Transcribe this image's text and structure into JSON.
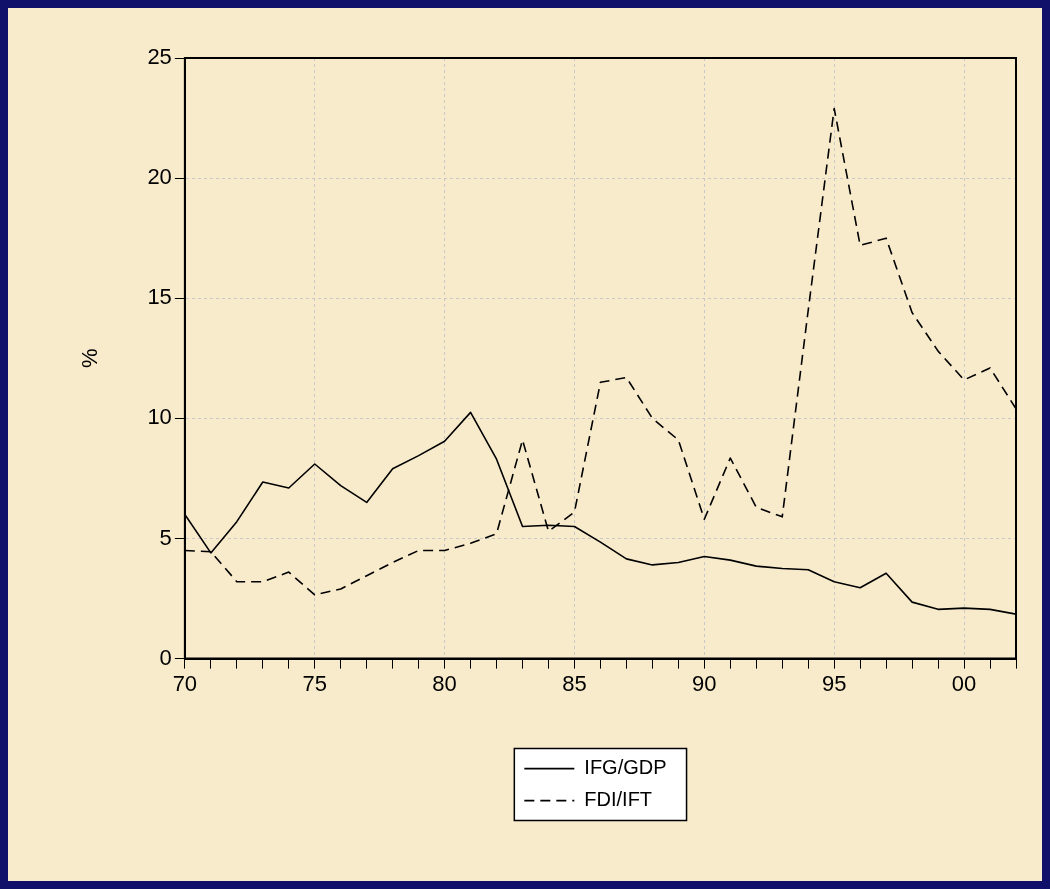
{
  "chart_data": {
    "type": "line",
    "ylabel": "%",
    "x": [
      1970,
      1971,
      1972,
      1973,
      1974,
      1975,
      1976,
      1977,
      1978,
      1979,
      1980,
      1981,
      1982,
      1983,
      1984,
      1985,
      1986,
      1987,
      1988,
      1989,
      1990,
      1991,
      1992,
      1993,
      1994,
      1995,
      1996,
      1997,
      1998,
      1999,
      2000,
      2001,
      2002
    ],
    "series": [
      {
        "name": "IFG/GDP",
        "color": "#000000",
        "line_style": "solid",
        "values": [
          6.0,
          4.4,
          5.7,
          7.35,
          7.1,
          8.1,
          7.2,
          6.5,
          7.9,
          8.45,
          9.05,
          10.25,
          8.3,
          5.5,
          5.55,
          5.5,
          4.85,
          4.15,
          3.9,
          4.0,
          4.25,
          4.1,
          3.85,
          3.75,
          3.7,
          3.2,
          2.95,
          3.55,
          2.35,
          2.05,
          2.1,
          2.05,
          1.85
        ]
      },
      {
        "name": "FDI/IFT",
        "color": "#000000",
        "line_style": "dashed",
        "values": [
          4.5,
          4.45,
          3.2,
          3.2,
          3.6,
          2.65,
          2.9,
          3.45,
          4.0,
          4.5,
          4.5,
          4.8,
          5.2,
          9.1,
          5.3,
          6.1,
          11.5,
          11.7,
          10.0,
          9.1,
          5.8,
          8.35,
          6.3,
          5.9,
          14.5,
          22.9,
          17.2,
          17.5,
          14.4,
          12.8,
          11.6,
          12.1,
          10.4
        ]
      }
    ],
    "xlim": [
      1970,
      2002
    ],
    "xticks": [
      {
        "value": 1970,
        "label": "70"
      },
      {
        "value": 1971,
        "label": null
      },
      {
        "value": 1972,
        "label": null
      },
      {
        "value": 1973,
        "label": null
      },
      {
        "value": 1974,
        "label": null
      },
      {
        "value": 1975,
        "label": "75"
      },
      {
        "value": 1976,
        "label": null
      },
      {
        "value": 1977,
        "label": null
      },
      {
        "value": 1978,
        "label": null
      },
      {
        "value": 1979,
        "label": null
      },
      {
        "value": 1980,
        "label": "80"
      },
      {
        "value": 1981,
        "label": null
      },
      {
        "value": 1982,
        "label": null
      },
      {
        "value": 1983,
        "label": null
      },
      {
        "value": 1984,
        "label": null
      },
      {
        "value": 1985,
        "label": "85"
      },
      {
        "value": 1986,
        "label": null
      },
      {
        "value": 1987,
        "label": null
      },
      {
        "value": 1988,
        "label": null
      },
      {
        "value": 1989,
        "label": null
      },
      {
        "value": 1990,
        "label": "90"
      },
      {
        "value": 1991,
        "label": null
      },
      {
        "value": 1992,
        "label": null
      },
      {
        "value": 1993,
        "label": null
      },
      {
        "value": 1994,
        "label": null
      },
      {
        "value": 1995,
        "label": "95"
      },
      {
        "value": 1996,
        "label": null
      },
      {
        "value": 1997,
        "label": null
      },
      {
        "value": 1998,
        "label": null
      },
      {
        "value": 1999,
        "label": null
      },
      {
        "value": 2000,
        "label": "00"
      },
      {
        "value": 2001,
        "label": null
      },
      {
        "value": 2002,
        "label": null
      }
    ],
    "ylim": [
      0,
      25
    ],
    "yticks": [
      0,
      5,
      10,
      15,
      20,
      25
    ],
    "grid": true,
    "legend": "bottom",
    "marker": "none"
  }
}
